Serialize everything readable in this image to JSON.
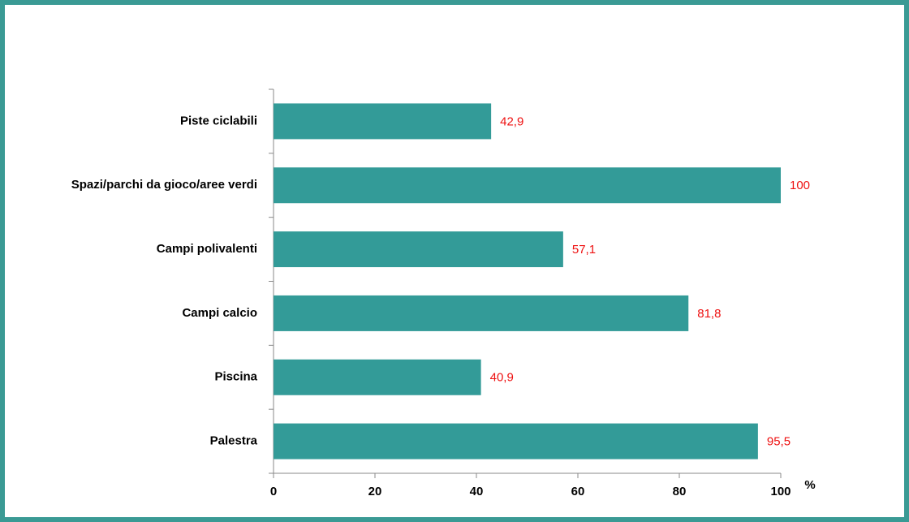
{
  "chart_data": {
    "type": "bar",
    "orientation": "horizontal",
    "categories": [
      "Piste ciclabili",
      "Spazi/parchi da gioco/aree verdi",
      "Campi polivalenti",
      "Campi calcio",
      "Piscina",
      "Palestra"
    ],
    "values": [
      42.9,
      100,
      57.1,
      81.8,
      40.9,
      95.5
    ],
    "value_labels": [
      "42,9",
      "100",
      "57,1",
      "81,8",
      "40,9",
      "95,5"
    ],
    "color": "#339b98",
    "value_label_color": "#ee1111",
    "x_label": "%",
    "xlim": [
      0,
      100
    ],
    "xticks": [
      0,
      20,
      40,
      60,
      80,
      100
    ]
  }
}
